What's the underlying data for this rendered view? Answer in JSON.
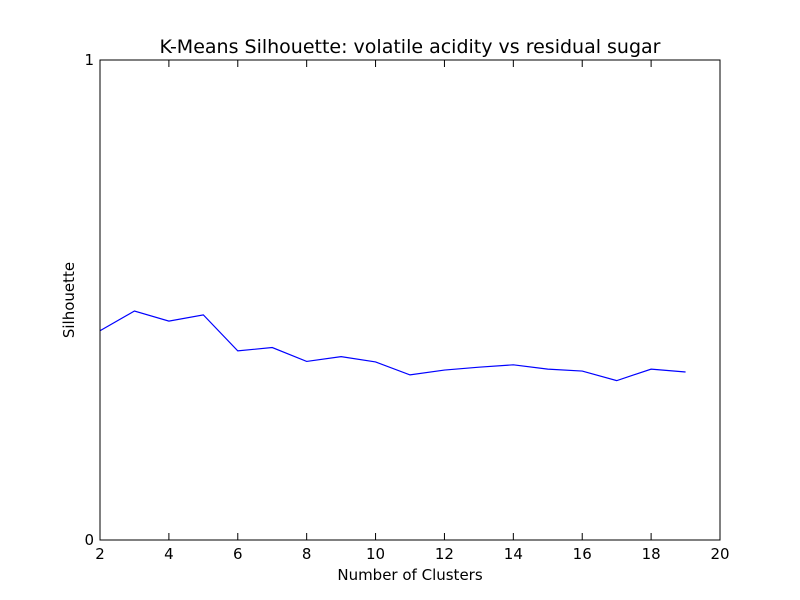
{
  "chart_data": {
    "type": "line",
    "title": "K-Means Silhouette: volatile acidity vs residual sugar",
    "xlabel": "Number of Clusters",
    "ylabel": "Silhouette",
    "xlim": [
      2,
      20
    ],
    "ylim": [
      0,
      1
    ],
    "xticks": [
      "2",
      "4",
      "6",
      "8",
      "10",
      "12",
      "14",
      "16",
      "18",
      "20"
    ],
    "yticks": [
      "0",
      "1"
    ],
    "grid": false,
    "series": [
      {
        "color": "#0000ff",
        "x": [
          2,
          3,
          4,
          5,
          6,
          7,
          8,
          9,
          10,
          11,
          12,
          13,
          14,
          15,
          16,
          17,
          18,
          19
        ],
        "y": [
          0.436,
          0.477,
          0.456,
          0.469,
          0.394,
          0.401,
          0.372,
          0.382,
          0.371,
          0.344,
          0.354,
          0.36,
          0.365,
          0.356,
          0.352,
          0.332,
          0.356,
          0.35
        ]
      }
    ]
  }
}
